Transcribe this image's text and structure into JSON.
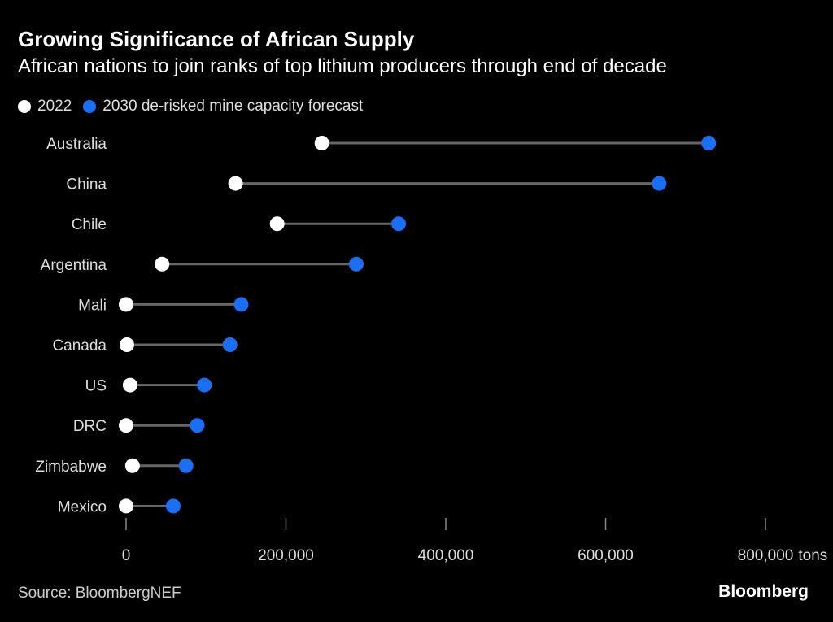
{
  "chart_data": {
    "type": "dumbbell",
    "title": "Growing Significance of African Supply",
    "subtitle": "African nations to join ranks of top lithium producers through end of decade",
    "categories": [
      "Australia",
      "China",
      "Chile",
      "Argentina",
      "Mali",
      "Canada",
      "US",
      "DRC",
      "Zimbabwe",
      "Mexico"
    ],
    "series": [
      {
        "name": "2022",
        "color": "#ffffff",
        "values": [
          245000,
          137000,
          189000,
          45000,
          0,
          1000,
          5000,
          0,
          8000,
          0
        ]
      },
      {
        "name": "2030 de-risked mine capacity forecast",
        "color": "#1a6ff5",
        "values": [
          729000,
          667000,
          341000,
          288000,
          144000,
          130000,
          98000,
          89000,
          75000,
          59000
        ]
      }
    ],
    "xlim": [
      0,
      800000
    ],
    "xticks": [
      0,
      200000,
      400000,
      600000,
      800000
    ],
    "xtick_labels": [
      "0",
      "200,000",
      "400,000",
      "600,000",
      "800,000"
    ],
    "xunit": "tons",
    "grid": false,
    "legend_position": "top-left",
    "source": "Source: BloombergNEF",
    "brand": "Bloomberg"
  }
}
